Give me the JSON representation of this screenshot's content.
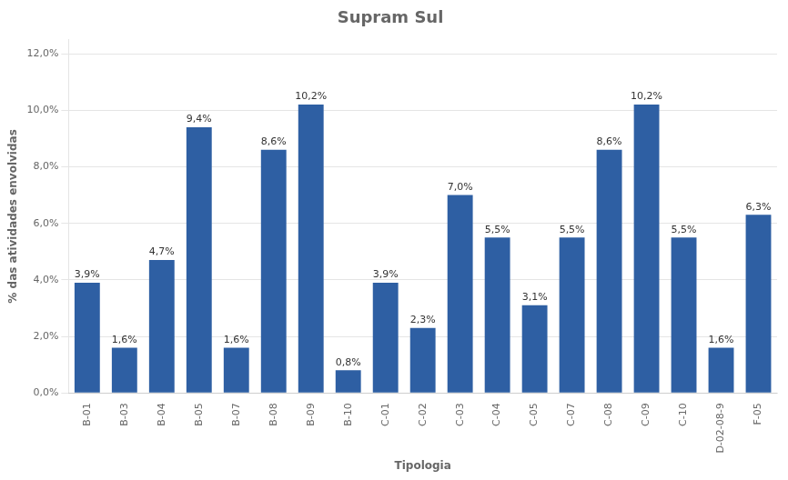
{
  "chart_data": {
    "type": "bar",
    "title": "Supram Sul",
    "xlabel": "Tipologia",
    "ylabel": "% das atividades envolvidas",
    "categories": [
      "B-01",
      "B-03",
      "B-04",
      "B-05",
      "B-07",
      "B-08",
      "B-09",
      "B-10",
      "C-01",
      "C-02",
      "C-03",
      "C-04",
      "C-05",
      "C-07",
      "C-08",
      "C-09",
      "C-10",
      "D-02-08-9",
      "F-05"
    ],
    "values": [
      3.9,
      1.6,
      4.7,
      9.4,
      1.6,
      8.6,
      10.2,
      0.8,
      3.9,
      2.3,
      7.0,
      5.5,
      3.1,
      5.5,
      8.6,
      10.2,
      5.5,
      1.6,
      6.3
    ],
    "value_labels": [
      "3,9%",
      "1,6%",
      "4,7%",
      "9,4%",
      "1,6%",
      "8,6%",
      "10,2%",
      "0,8%",
      "3,9%",
      "2,3%",
      "7,0%",
      "5,5%",
      "3,1%",
      "5,5%",
      "8,6%",
      "10,2%",
      "5,5%",
      "1,6%",
      "6,3%"
    ],
    "color": "#2E5FA3",
    "ylim": [
      0,
      12.5
    ],
    "yticks": [
      {
        "value": 0.0,
        "label": "0,0%"
      },
      {
        "value": 2.0,
        "label": "2,0%"
      },
      {
        "value": 4.0,
        "label": "4,0%"
      },
      {
        "value": 6.0,
        "label": "6,0%"
      },
      {
        "value": 8.0,
        "label": "8,0%"
      },
      {
        "value": 10.0,
        "label": "10,0%"
      },
      {
        "value": 12.0,
        "label": "12,0%"
      }
    ],
    "grid": true,
    "data_labels": true
  }
}
